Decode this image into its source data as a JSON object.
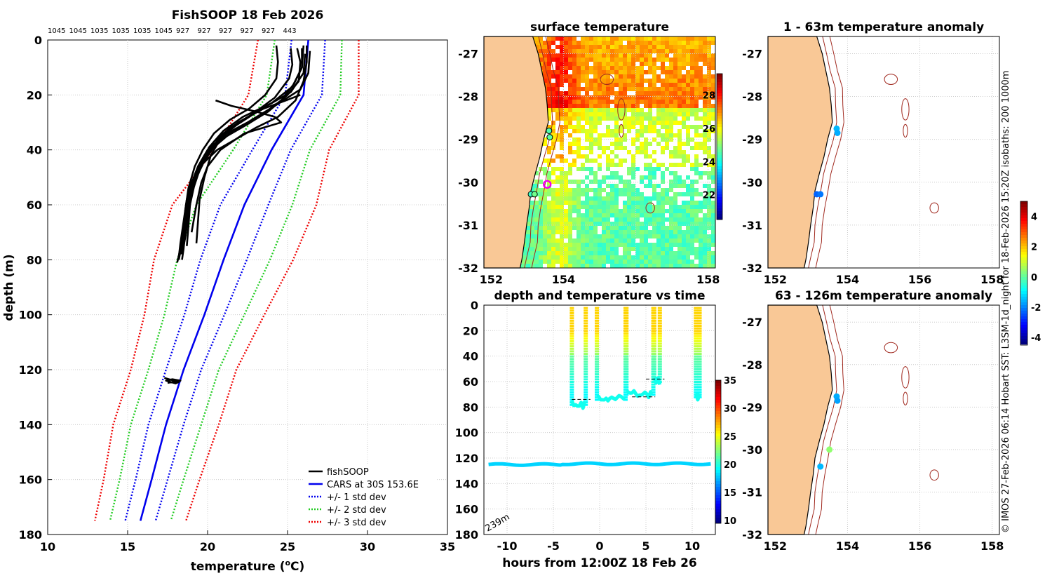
{
  "figure": {
    "credit": "© IMOS 27-Feb-2026 06:14 Hobart SST: L3SM-1d_night for 18-Feb-2026 15:20Z isobaths: 200  1000m"
  },
  "colors": {
    "profile": "#000000",
    "cars": "#0000ee",
    "std1": "#0000ee",
    "std2": "#22cc22",
    "std3": "#ee0000",
    "land": "#f9c896",
    "isobath": "#a0281e",
    "grid": "#cccccc"
  },
  "chart_data": [
    {
      "id": "profiles",
      "type": "line",
      "title": "FishSOOP 18 Feb 2026",
      "top_labels": [
        "1045",
        "1045",
        "1035",
        "1035",
        "1035",
        "1045",
        "927",
        "927",
        "927",
        "927",
        "927",
        "443"
      ],
      "xlabel": "temperature (",
      "xlabel_unit": "o",
      "xlabel_end": "C)",
      "ylabel": "depth (m)",
      "xlim": [
        10,
        35
      ],
      "ylim": [
        180,
        0
      ],
      "xticks": [
        10,
        15,
        20,
        25,
        30,
        35
      ],
      "yticks": [
        0,
        20,
        40,
        60,
        80,
        100,
        120,
        140,
        160,
        180
      ],
      "legend": [
        {
          "label": "fishSOOP",
          "style": "solid",
          "color": "#000000"
        },
        {
          "label": "CARS at 30S 153.6E",
          "style": "solid",
          "color": "#0000ee"
        },
        {
          "label": "+/- 1 std dev",
          "style": "dotted",
          "color": "#0000ee"
        },
        {
          "label": "+/- 2 std dev",
          "style": "dotted",
          "color": "#22cc22"
        },
        {
          "label": "+/- 3 std dev",
          "style": "dotted",
          "color": "#ee0000"
        }
      ],
      "cars": {
        "depth": [
          0,
          20,
          40,
          60,
          80,
          100,
          120,
          140,
          160,
          175
        ],
        "mean": [
          26.3,
          26.0,
          24.0,
          22.3,
          21.0,
          19.8,
          18.5,
          17.4,
          16.5,
          15.8
        ],
        "std": [
          1.05,
          1.15,
          1.2,
          1.5,
          1.45,
          1.25,
          1.1,
          1.1,
          1.0,
          0.95
        ]
      },
      "fishsoop": {
        "series": [
          {
            "depth": [
              2,
              8,
              15,
              22,
              28,
              32,
              36,
              40,
              45,
              50,
              56,
              62,
              70,
              76,
              80
            ],
            "temp": [
              26.2,
              26.2,
              26.0,
              25.5,
              24.4,
              23.0,
              21.8,
              20.6,
              19.7,
              19.2,
              18.9,
              18.7,
              18.6,
              18.5,
              18.4
            ]
          },
          {
            "depth": [
              3,
              8,
              15,
              20,
              26,
              31,
              35,
              40,
              46,
              52,
              58,
              66,
              74,
              79
            ],
            "temp": [
              25.6,
              25.8,
              25.7,
              25.0,
              23.8,
              22.4,
              21.2,
              20.2,
              19.5,
              19.0,
              18.7,
              18.5,
              18.3,
              18.2
            ]
          },
          {
            "depth": [
              2,
              10,
              16,
              22,
              28,
              33,
              38,
              44,
              50,
              56,
              64,
              72,
              78
            ],
            "temp": [
              26.0,
              25.9,
              25.4,
              24.6,
              23.2,
              21.6,
              20.5,
              19.8,
              19.3,
              19.0,
              18.8,
              18.6,
              18.4
            ]
          },
          {
            "depth": [
              4,
              12,
              18,
              24,
              30,
              34,
              40,
              46,
              52,
              60,
              68,
              76,
              81
            ],
            "temp": [
              26.4,
              26.3,
              25.8,
              24.2,
              22.5,
              21.2,
              20.0,
              19.4,
              19.0,
              18.7,
              18.5,
              18.3,
              18.1
            ]
          },
          {
            "depth": [
              3,
              9,
              14,
              21,
              27,
              32,
              37,
              42,
              48,
              55,
              62,
              70,
              78
            ],
            "temp": [
              25.2,
              25.3,
              25.1,
              24.2,
              22.8,
              21.4,
              20.4,
              19.8,
              19.3,
              18.9,
              18.7,
              18.6,
              18.3
            ]
          },
          {
            "depth": [
              2,
              8,
              14,
              20,
              25,
              29,
              34,
              40,
              46,
              54,
              62,
              70,
              76
            ],
            "temp": [
              24.3,
              24.4,
              24.3,
              23.6,
              22.6,
              21.4,
              20.4,
              19.7,
              19.2,
              18.8,
              18.6,
              18.5,
              18.4
            ]
          },
          {
            "depth": [
              5,
              12,
              19,
              25,
              31,
              36,
              42,
              49,
              56,
              65,
              74,
              80
            ],
            "temp": [
              26.1,
              26.0,
              25.2,
              23.4,
              21.8,
              20.7,
              19.9,
              19.4,
              19.0,
              18.7,
              18.4,
              18.2
            ]
          },
          {
            "depth": [
              3,
              10,
              17,
              23,
              28,
              33,
              39,
              45,
              52,
              60,
              68,
              75
            ],
            "temp": [
              25.9,
              25.9,
              25.3,
              24.0,
              22.2,
              21.0,
              20.1,
              19.6,
              19.2,
              18.9,
              18.8,
              18.7
            ]
          },
          {
            "depth": [
              22,
              24,
              26,
              28,
              30,
              34,
              40,
              46,
              52,
              60,
              70
            ],
            "temp": [
              20.5,
              21.5,
              23.0,
              24.2,
              24.6,
              22.3,
              20.8,
              20.0,
              19.6,
              19.3,
              19.0
            ]
          },
          {
            "depth": [
              20,
              22,
              25,
              30,
              35,
              42,
              50,
              58,
              66,
              74
            ],
            "temp": [
              25.8,
              24.9,
              23.5,
              21.9,
              20.9,
              20.2,
              19.8,
              19.5,
              19.4,
              19.3
            ]
          },
          {
            "depth": [
              123,
              123.5,
              124,
              124.5,
              125,
              124.5,
              124,
              123.5,
              124,
              124.8
            ],
            "temp": [
              17.3,
              17.6,
              17.9,
              18.2,
              18.0,
              17.7,
              17.4,
              17.8,
              18.3,
              17.5
            ]
          }
        ]
      }
    },
    {
      "id": "sst_map",
      "type": "heatmap",
      "title": "surface temperature",
      "xlim": [
        151.8,
        158.2
      ],
      "ylim": [
        -32,
        -26.6
      ],
      "xticks": [
        152,
        154,
        156,
        158
      ],
      "yticks": [
        -27,
        -28,
        -29,
        -30,
        -31,
        -32
      ],
      "colorbar_ticks": [
        22,
        24,
        26,
        28
      ],
      "colorbar_range": [
        20.5,
        29.3
      ],
      "station_markers": [
        {
          "lon": 153.6,
          "lat": -28.8,
          "temp": 24.5
        },
        {
          "lon": 153.62,
          "lat": -28.95,
          "temp": 24.6
        },
        {
          "lon": 153.1,
          "lat": -30.28,
          "temp": 24.3
        },
        {
          "lon": 153.2,
          "lat": -30.28,
          "temp": 24.8
        }
      ],
      "current_position": {
        "lon": 153.55,
        "lat": -30.05
      }
    },
    {
      "id": "time_depth",
      "type": "scatter",
      "title": "depth and temperature vs time",
      "xlabel": "hours from 12:00Z 18 Feb 26",
      "xlim": [
        -12.5,
        12.5
      ],
      "ylim": [
        180,
        0
      ],
      "xticks": [
        -10,
        -5,
        0,
        5,
        10
      ],
      "yticks": [
        0,
        20,
        40,
        60,
        80,
        100,
        120,
        140,
        160,
        180
      ],
      "colorbar_ticks": [
        10,
        15,
        20,
        25,
        30,
        35
      ],
      "colorbar_range": [
        9.5,
        35
      ],
      "annotation": "239m",
      "casts": [
        {
          "t0": -3.0,
          "t1": -1.5,
          "bottom": 78
        },
        {
          "t0": -0.3,
          "t1": 2.8,
          "bottom": 74
        },
        {
          "t0": 2.9,
          "t1": 5.8,
          "bottom": 70
        },
        {
          "t0": 5.9,
          "t1": 6.5,
          "bottom": 60
        },
        {
          "t0": 10.4,
          "t1": 10.8,
          "bottom": 72
        }
      ],
      "deep_line": {
        "depth": 124.5,
        "temp": 18.0
      }
    },
    {
      "id": "anom_upper",
      "type": "scatter",
      "title": "1 - 63m temperature anomaly",
      "xlim": [
        151.8,
        158.2
      ],
      "ylim": [
        -32,
        -26.6
      ],
      "xticks": [
        152,
        154,
        156,
        158
      ],
      "yticks": [
        -27,
        -28,
        -29,
        -30,
        -31,
        -32
      ],
      "points": [
        {
          "lon": 153.7,
          "lat": -28.75,
          "anom": -1.6
        },
        {
          "lon": 153.72,
          "lat": -28.85,
          "anom": -1.7
        },
        {
          "lon": 153.15,
          "lat": -30.28,
          "anom": -2.4
        },
        {
          "lon": 153.25,
          "lat": -30.28,
          "anom": -2.2
        }
      ]
    },
    {
      "id": "anom_lower",
      "type": "scatter",
      "title": "63 - 126m temperature anomaly",
      "xlim": [
        151.8,
        158.2
      ],
      "ylim": [
        -32,
        -26.6
      ],
      "xticks": [
        152,
        154,
        156,
        158
      ],
      "yticks": [
        -27,
        -28,
        -29,
        -30,
        -31,
        -32
      ],
      "points": [
        {
          "lon": 153.7,
          "lat": -28.75,
          "anom": -1.7
        },
        {
          "lon": 153.72,
          "lat": -28.85,
          "anom": -1.8
        },
        {
          "lon": 153.5,
          "lat": -30.0,
          "anom": 0.4
        },
        {
          "lon": 153.25,
          "lat": -30.4,
          "anom": -1.6
        }
      ]
    },
    {
      "id": "anom_colorbar",
      "type": "heatmap",
      "colorbar_ticks": [
        -4,
        -2,
        0,
        2,
        4
      ],
      "colorbar_range": [
        -4.5,
        5
      ]
    }
  ]
}
